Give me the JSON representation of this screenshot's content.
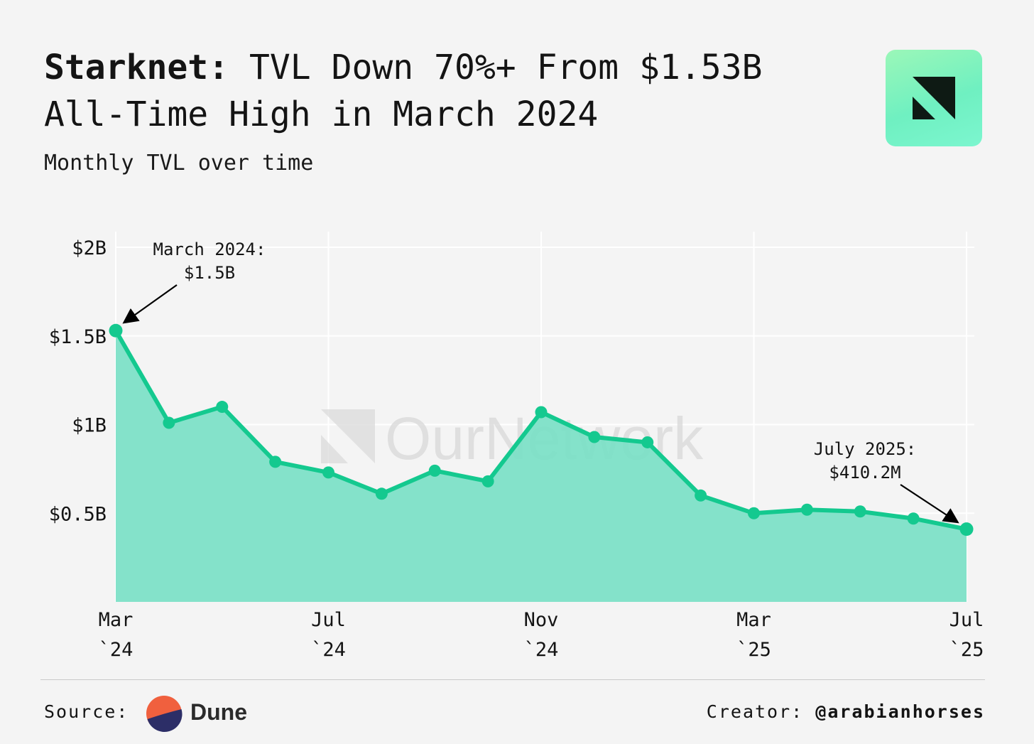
{
  "header": {
    "title_strong": "Starknet:",
    "title_rest": "TVL Down 70%+ From $1.53B All-Time High in March 2024",
    "subtitle": "Monthly TVL over time"
  },
  "footer": {
    "source_label": "Source:",
    "source_name": "Dune",
    "creator_label": "Creator:",
    "creator_handle": "@arabianhorses"
  },
  "watermark": "OurNetwork",
  "colors": {
    "line": "#14c98f",
    "area": "#7adfc6",
    "background": "#f4f4f4",
    "grid": "#ffffff",
    "logo_mark": "#0e1a14",
    "dune_orange": "#f0603e",
    "dune_navy": "#2c2e67"
  },
  "chart_data": {
    "type": "area",
    "title": "Starknet: TVL Down 70%+ From $1.53B All-Time High in March 2024",
    "subtitle": "Monthly TVL over time",
    "xlabel": "",
    "ylabel": "",
    "x": [
      "Mar 2024",
      "Apr 2024",
      "May 2024",
      "Jun 2024",
      "Jul 2024",
      "Aug 2024",
      "Sep 2024",
      "Oct 2024",
      "Nov 2024",
      "Dec 2024",
      "Jan 2025",
      "Feb 2025",
      "Mar 2025",
      "Apr 2025",
      "May 2025",
      "Jun 2025",
      "Jul 2025"
    ],
    "values": [
      1.53,
      1.01,
      1.1,
      0.79,
      0.73,
      0.61,
      0.74,
      0.68,
      1.07,
      0.93,
      0.9,
      0.6,
      0.5,
      0.52,
      0.51,
      0.47,
      0.4102
    ],
    "units": "billions USD",
    "ylim": [
      0,
      2
    ],
    "yticks": [
      0.5,
      1,
      1.5,
      2
    ],
    "ytick_labels": [
      "$0.5B",
      "$1B",
      "$1.5B",
      "$2B"
    ],
    "xticks": [
      {
        "index": 0,
        "month": "Mar",
        "year": "`24"
      },
      {
        "index": 4,
        "month": "Jul",
        "year": "`24"
      },
      {
        "index": 8,
        "month": "Nov",
        "year": "`24"
      },
      {
        "index": 12,
        "month": "Mar",
        "year": "`25"
      },
      {
        "index": 16,
        "month": "Jul",
        "year": "`25"
      }
    ],
    "grid": true,
    "annotations": [
      {
        "index": 0,
        "lines": [
          "March 2024:",
          "$1.5B"
        ]
      },
      {
        "index": 16,
        "lines": [
          "July 2025:",
          "$410.2M"
        ]
      }
    ]
  }
}
